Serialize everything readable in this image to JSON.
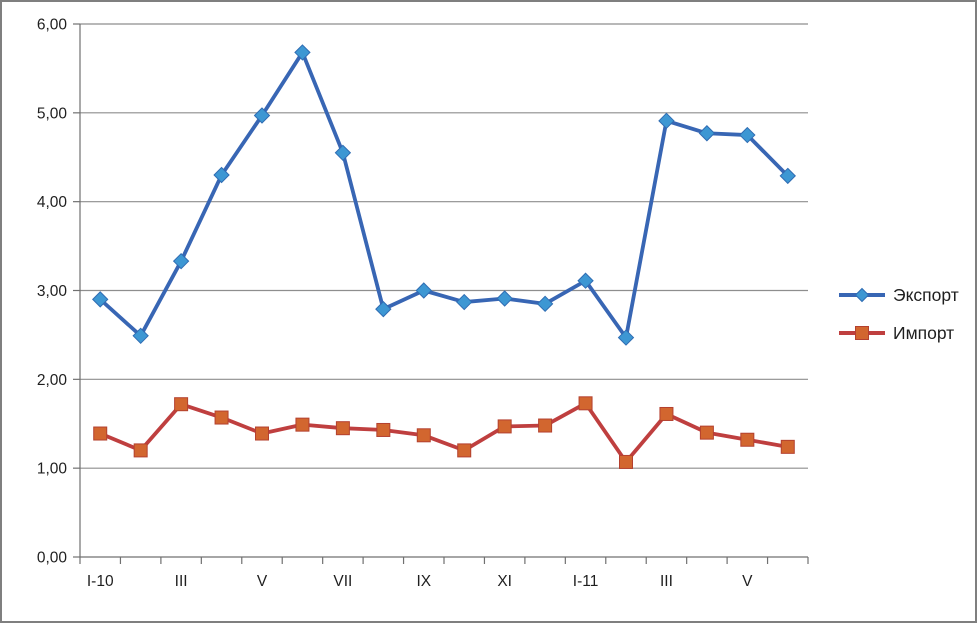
{
  "chart_data": {
    "type": "line",
    "x_labels": [
      "I-10",
      "",
      "III",
      "",
      "V",
      "",
      "VII",
      "",
      "IX",
      "",
      "XI",
      "",
      "I-11",
      "",
      "III",
      "",
      "V",
      ""
    ],
    "series": [
      {
        "name": "Экспорт",
        "marker": "diamond",
        "line_color": "#3866b4",
        "marker_fill": "#3d97d3",
        "marker_stroke": "#2f6cb3",
        "values": [
          2.9,
          2.49,
          3.33,
          4.3,
          4.97,
          5.68,
          4.55,
          2.79,
          3.0,
          2.87,
          2.91,
          2.85,
          3.11,
          2.47,
          4.91,
          4.77,
          4.75,
          4.29
        ]
      },
      {
        "name": "Импорт",
        "marker": "square",
        "line_color": "#bf3f3f",
        "marker_fill": "#d2662f",
        "marker_stroke": "#b4402f",
        "values": [
          1.39,
          1.2,
          1.72,
          1.57,
          1.39,
          1.49,
          1.45,
          1.43,
          1.37,
          1.2,
          1.47,
          1.48,
          1.73,
          1.07,
          1.61,
          1.4,
          1.32,
          1.24
        ]
      }
    ],
    "y_tick_labels": [
      "0,00",
      "1,00",
      "2,00",
      "3,00",
      "4,00",
      "5,00",
      "6,00"
    ],
    "ylim": [
      0,
      6
    ],
    "ytick_step": 1,
    "grid": true,
    "legend_position": "right",
    "title": "",
    "xlabel": "",
    "ylabel": "",
    "gridline_color": "#8e8e8e",
    "axis_color": "#707070",
    "text_color": "#1f1f1f"
  }
}
